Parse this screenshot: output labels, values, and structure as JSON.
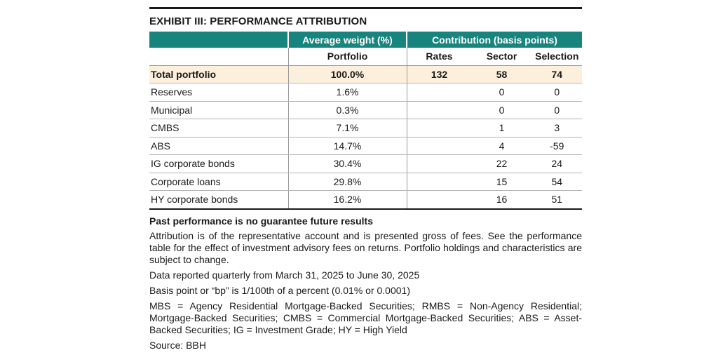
{
  "title": "EXHIBIT III: PERFORMANCE ATTRIBUTION",
  "header": {
    "group_weight": "Average weight (%)",
    "group_contribution": "Contribution (basis points)",
    "portfolio": "Portfolio",
    "rates": "Rates",
    "sector": "Sector",
    "selection": "Selection"
  },
  "total": {
    "label": "Total portfolio",
    "weight": "100.0%",
    "rates": "132",
    "sector": "58",
    "selection": "74"
  },
  "rows": [
    {
      "label": "Reserves",
      "weight": "1.6%",
      "rates": "",
      "sector": "0",
      "selection": "0"
    },
    {
      "label": "Municipal",
      "weight": "0.3%",
      "rates": "",
      "sector": "0",
      "selection": "0"
    },
    {
      "label": "CMBS",
      "weight": "7.1%",
      "rates": "",
      "sector": "1",
      "selection": "3"
    },
    {
      "label": "ABS",
      "weight": "14.7%",
      "rates": "",
      "sector": "4",
      "selection": "-59"
    },
    {
      "label": "IG corporate bonds",
      "weight": "30.4%",
      "rates": "",
      "sector": "22",
      "selection": "24"
    },
    {
      "label": "Corporate loans",
      "weight": "29.8%",
      "rates": "",
      "sector": "15",
      "selection": "54"
    },
    {
      "label": "HY corporate bonds",
      "weight": "16.2%",
      "rates": "",
      "sector": "16",
      "selection": "51"
    }
  ],
  "notes": {
    "heading": "Past performance is no guarantee future results",
    "attribution": "Attribution is of the representative account and is presented gross of fees. See the performance table for the effect of investment advisory fees on returns. Portfolio holdings and characteristics are subject to change.",
    "period": "Data reported quarterly from March 31, 2025 to June 30, 2025",
    "basis_point": "Basis point or “bp” is 1/100th of a percent (0.01% or 0.0001)",
    "abbreviations": "MBS = Agency Residential Mortgage-Backed Securities; RMBS = Non-Agency Residential; Mortgage-Backed Securities; CMBS = Commercial Mortgage-Backed Securities; ABS = Asset-Backed Securities; IG = Investment Grade; HY = High Yield",
    "source": "Source: BBH"
  }
}
